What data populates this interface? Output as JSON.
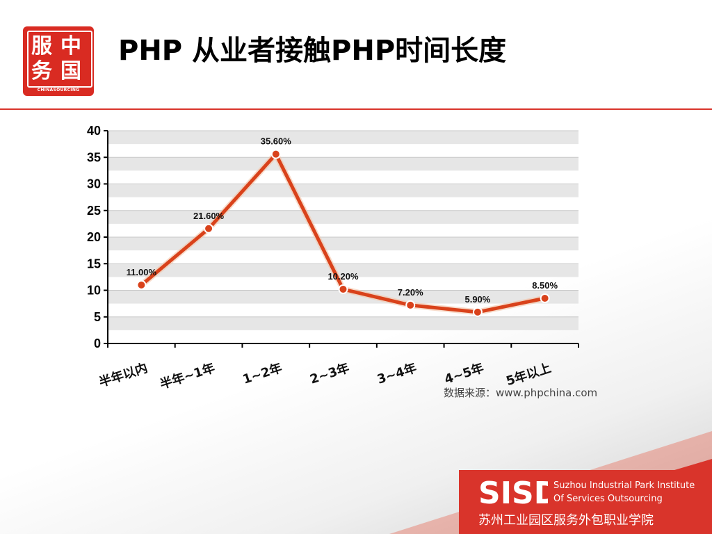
{
  "header": {
    "title": "PHP 从业者接触PHP时间长度",
    "logo": {
      "glyphs": [
        "服",
        "中",
        "务",
        "国"
      ],
      "caption": "CHINASOURCING"
    }
  },
  "chart_data": {
    "type": "line",
    "title": "",
    "xlabel": "",
    "ylabel": "",
    "categories": [
      "半年以内",
      "半年~1年",
      "1~2年",
      "2~3年",
      "3~4年",
      "4~5年",
      "5年以上"
    ],
    "values": [
      11.0,
      21.6,
      35.6,
      10.2,
      7.2,
      5.9,
      8.5
    ],
    "data_labels": [
      "11.00%",
      "21.60%",
      "35.60%",
      "10.20%",
      "7.20%",
      "5.90%",
      "8.50%"
    ],
    "ylim": [
      0,
      40
    ],
    "yticks": [
      0,
      5,
      10,
      15,
      20,
      25,
      30,
      35,
      40
    ],
    "grid": true,
    "line_color": "#d9421b",
    "marker_color": "#d9421b"
  },
  "source": "数据来源：www.phpchina.com",
  "footer": {
    "en_line1": "Suzhou Industrial Park Institute",
    "en_line2": "Of Services Outsourcing",
    "cn": "苏州工业园区服务外包职业学院",
    "logo_text": "SISD"
  },
  "colors": {
    "accent": "#d9342b",
    "band": "#e6e6e6"
  }
}
